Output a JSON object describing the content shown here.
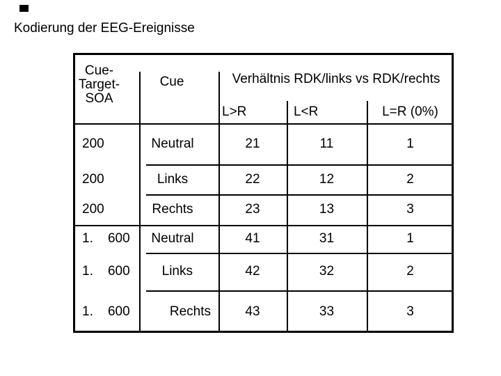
{
  "slide": {
    "title": "Kodierung der EEG-Ereignisse"
  },
  "table": {
    "col1_header_lines": [
      "Cue-",
      "Target-",
      "SOA"
    ],
    "col2_header": "Cue",
    "group_header": "Verhältnis RDK/links vs RDK/rechts",
    "sub_headers": [
      "L>R",
      "L<R",
      "L=R (0%)"
    ],
    "rows": [
      {
        "soa": "200",
        "cue": "Neutral",
        "l_gt_r": "21",
        "l_lt_r": "11",
        "l_eq_r": "1"
      },
      {
        "soa": "200",
        "cue": "Links",
        "l_gt_r": "22",
        "l_lt_r": "12",
        "l_eq_r": "2"
      },
      {
        "soa": "200",
        "cue": "Rechts",
        "l_gt_r": "23",
        "l_lt_r": "13",
        "l_eq_r": "3"
      },
      {
        "soa": "1.    600",
        "cue": "Neutral",
        "l_gt_r": "41",
        "l_lt_r": "31",
        "l_eq_r": "1"
      },
      {
        "soa": "1.    600",
        "cue": "Links",
        "l_gt_r": "42",
        "l_lt_r": "32",
        "l_eq_r": "2"
      },
      {
        "soa": "1.    600",
        "cue": "Rechts",
        "l_gt_r": "43",
        "l_lt_r": "33",
        "l_eq_r": "3"
      }
    ],
    "colors": {
      "border": "#000000",
      "background": "#ffffff",
      "text": "#000000"
    }
  }
}
